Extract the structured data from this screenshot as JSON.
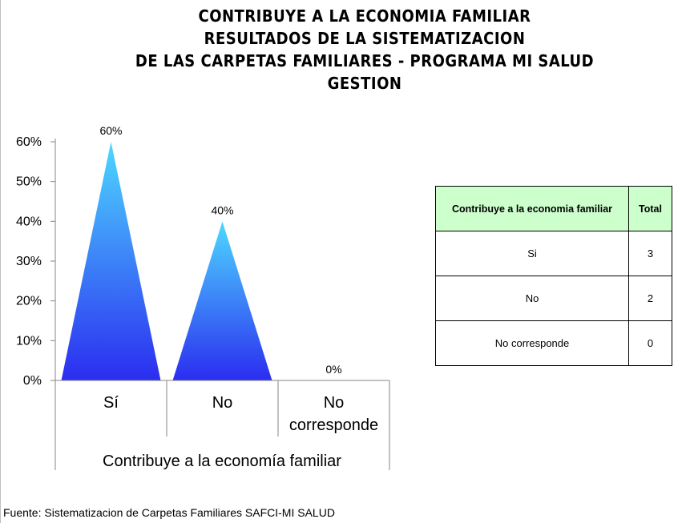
{
  "title_lines": [
    "CONTRIBUYE A LA ECONOMIA FAMILIAR",
    "RESULTADOS DE LA SISTEMATIZACION",
    "DE LAS CARPETAS FAMILIARES - PROGRAMA MI SALUD",
    "GESTION"
  ],
  "chart_data": {
    "type": "bar",
    "bar_shape": "triangle",
    "categories": [
      "Sí",
      "No",
      "No corresponde"
    ],
    "values": [
      60,
      40,
      0
    ],
    "data_labels": [
      "60%",
      "40%",
      "0%"
    ],
    "xlabel": "Contribuye  a la economía familiar",
    "ylabel": "",
    "ylim": [
      0,
      60
    ],
    "yticks": [
      "0%",
      "10%",
      "20%",
      "30%",
      "40%",
      "50%",
      "60%"
    ],
    "grid": false,
    "colors": {
      "bar_top": "#4ed8ff",
      "bar_bottom": "#2b2df0",
      "axis": "#868686"
    }
  },
  "table": {
    "headers": [
      "Contribuye  a la economia familiar",
      "Total"
    ],
    "rows": [
      [
        "Si",
        "3"
      ],
      [
        "No",
        "2"
      ],
      [
        "No corresponde",
        "0"
      ]
    ],
    "header_bg": "#ccffcc"
  },
  "source": "Fuente: Sistematizacion de Carpetas Familiares SAFCI-MI SALUD"
}
